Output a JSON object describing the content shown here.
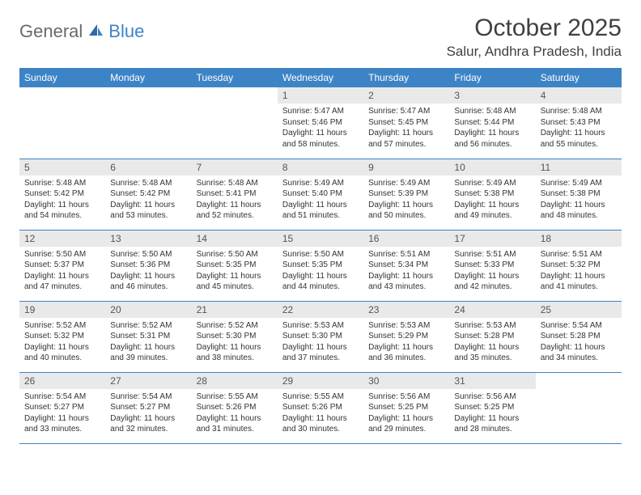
{
  "brand": {
    "part1": "General",
    "part2": "Blue"
  },
  "title": "October 2025",
  "location": "Salur, Andhra Pradesh, India",
  "colors": {
    "header_bg": "#3d84c6",
    "header_text": "#ffffff",
    "daynum_bg": "#e9e9e9",
    "border": "#3d84c6",
    "logo_gray": "#6a6a6a",
    "logo_blue": "#3d84c6"
  },
  "weekdays": [
    "Sunday",
    "Monday",
    "Tuesday",
    "Wednesday",
    "Thursday",
    "Friday",
    "Saturday"
  ],
  "weeks": [
    [
      null,
      null,
      null,
      {
        "n": "1",
        "sr": "5:47 AM",
        "ss": "5:46 PM",
        "dl": "11 hours and 58 minutes."
      },
      {
        "n": "2",
        "sr": "5:47 AM",
        "ss": "5:45 PM",
        "dl": "11 hours and 57 minutes."
      },
      {
        "n": "3",
        "sr": "5:48 AM",
        "ss": "5:44 PM",
        "dl": "11 hours and 56 minutes."
      },
      {
        "n": "4",
        "sr": "5:48 AM",
        "ss": "5:43 PM",
        "dl": "11 hours and 55 minutes."
      }
    ],
    [
      {
        "n": "5",
        "sr": "5:48 AM",
        "ss": "5:42 PM",
        "dl": "11 hours and 54 minutes."
      },
      {
        "n": "6",
        "sr": "5:48 AM",
        "ss": "5:42 PM",
        "dl": "11 hours and 53 minutes."
      },
      {
        "n": "7",
        "sr": "5:48 AM",
        "ss": "5:41 PM",
        "dl": "11 hours and 52 minutes."
      },
      {
        "n": "8",
        "sr": "5:49 AM",
        "ss": "5:40 PM",
        "dl": "11 hours and 51 minutes."
      },
      {
        "n": "9",
        "sr": "5:49 AM",
        "ss": "5:39 PM",
        "dl": "11 hours and 50 minutes."
      },
      {
        "n": "10",
        "sr": "5:49 AM",
        "ss": "5:38 PM",
        "dl": "11 hours and 49 minutes."
      },
      {
        "n": "11",
        "sr": "5:49 AM",
        "ss": "5:38 PM",
        "dl": "11 hours and 48 minutes."
      }
    ],
    [
      {
        "n": "12",
        "sr": "5:50 AM",
        "ss": "5:37 PM",
        "dl": "11 hours and 47 minutes."
      },
      {
        "n": "13",
        "sr": "5:50 AM",
        "ss": "5:36 PM",
        "dl": "11 hours and 46 minutes."
      },
      {
        "n": "14",
        "sr": "5:50 AM",
        "ss": "5:35 PM",
        "dl": "11 hours and 45 minutes."
      },
      {
        "n": "15",
        "sr": "5:50 AM",
        "ss": "5:35 PM",
        "dl": "11 hours and 44 minutes."
      },
      {
        "n": "16",
        "sr": "5:51 AM",
        "ss": "5:34 PM",
        "dl": "11 hours and 43 minutes."
      },
      {
        "n": "17",
        "sr": "5:51 AM",
        "ss": "5:33 PM",
        "dl": "11 hours and 42 minutes."
      },
      {
        "n": "18",
        "sr": "5:51 AM",
        "ss": "5:32 PM",
        "dl": "11 hours and 41 minutes."
      }
    ],
    [
      {
        "n": "19",
        "sr": "5:52 AM",
        "ss": "5:32 PM",
        "dl": "11 hours and 40 minutes."
      },
      {
        "n": "20",
        "sr": "5:52 AM",
        "ss": "5:31 PM",
        "dl": "11 hours and 39 minutes."
      },
      {
        "n": "21",
        "sr": "5:52 AM",
        "ss": "5:30 PM",
        "dl": "11 hours and 38 minutes."
      },
      {
        "n": "22",
        "sr": "5:53 AM",
        "ss": "5:30 PM",
        "dl": "11 hours and 37 minutes."
      },
      {
        "n": "23",
        "sr": "5:53 AM",
        "ss": "5:29 PM",
        "dl": "11 hours and 36 minutes."
      },
      {
        "n": "24",
        "sr": "5:53 AM",
        "ss": "5:28 PM",
        "dl": "11 hours and 35 minutes."
      },
      {
        "n": "25",
        "sr": "5:54 AM",
        "ss": "5:28 PM",
        "dl": "11 hours and 34 minutes."
      }
    ],
    [
      {
        "n": "26",
        "sr": "5:54 AM",
        "ss": "5:27 PM",
        "dl": "11 hours and 33 minutes."
      },
      {
        "n": "27",
        "sr": "5:54 AM",
        "ss": "5:27 PM",
        "dl": "11 hours and 32 minutes."
      },
      {
        "n": "28",
        "sr": "5:55 AM",
        "ss": "5:26 PM",
        "dl": "11 hours and 31 minutes."
      },
      {
        "n": "29",
        "sr": "5:55 AM",
        "ss": "5:26 PM",
        "dl": "11 hours and 30 minutes."
      },
      {
        "n": "30",
        "sr": "5:56 AM",
        "ss": "5:25 PM",
        "dl": "11 hours and 29 minutes."
      },
      {
        "n": "31",
        "sr": "5:56 AM",
        "ss": "5:25 PM",
        "dl": "11 hours and 28 minutes."
      },
      null
    ]
  ],
  "labels": {
    "sunrise": "Sunrise:",
    "sunset": "Sunset:",
    "daylight": "Daylight:"
  }
}
